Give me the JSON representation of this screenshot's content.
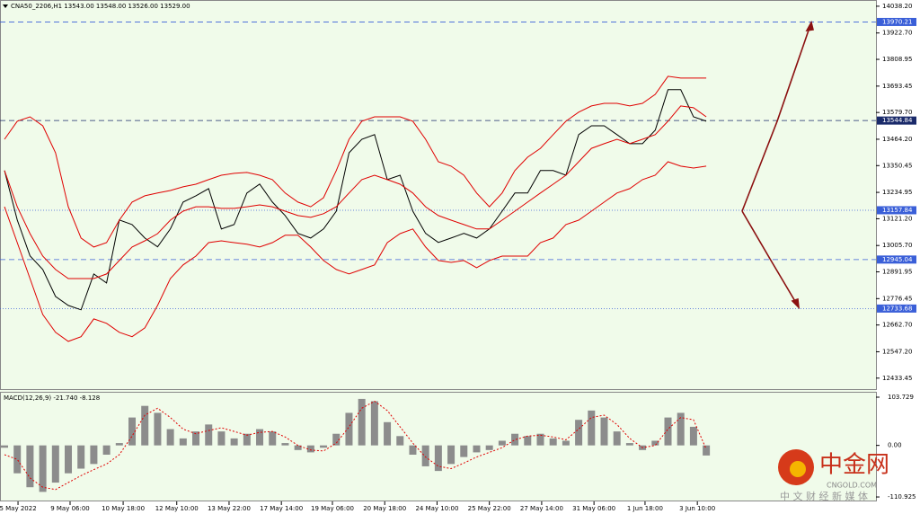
{
  "chart_data": [
    {
      "type": "line",
      "title": "CNA50_2206,H1  13543.00 13548.00 13526.00 13529.00",
      "x": [
        0,
        1,
        2,
        3,
        4,
        5,
        6,
        7,
        8,
        9,
        10,
        11,
        12,
        13,
        14,
        15,
        16,
        17,
        18,
        19,
        20,
        21,
        22,
        23,
        24,
        25,
        26,
        27,
        28,
        29,
        30,
        31,
        32,
        33,
        34,
        35,
        36,
        37,
        38,
        39,
        40,
        41,
        42,
        43,
        44,
        45,
        46,
        47,
        48,
        49,
        50,
        51,
        52,
        53,
        54,
        55
      ],
      "xlim": [
        0,
        68.3
      ],
      "xticks": [
        {
          "value": 1.06,
          "label": "5 May 2022"
        },
        {
          "value": 5.14,
          "label": "9 May 06:00"
        },
        {
          "value": 9.3,
          "label": "10 May 18:00"
        },
        {
          "value": 13.5,
          "label": "12 May 10:00"
        },
        {
          "value": 17.6,
          "label": "13 May 22:00"
        },
        {
          "value": 21.7,
          "label": "17 May 14:00"
        },
        {
          "value": 25.7,
          "label": "19 May 06:00"
        },
        {
          "value": 29.8,
          "label": "20 May 18:00"
        },
        {
          "value": 33.9,
          "label": "24 May 10:00"
        },
        {
          "value": 38,
          "label": "25 May 22:00"
        },
        {
          "value": 42.1,
          "label": "27 May 14:00"
        },
        {
          "value": 46.2,
          "label": "31 May 06:00"
        },
        {
          "value": 50.2,
          "label": "1 Jun 18:00"
        },
        {
          "value": 54.3,
          "label": "3 Jun 10:00"
        }
      ],
      "ylim": [
        12390,
        14065
      ],
      "yticks": [
        {
          "value": 14038.2,
          "label": "14038.20"
        },
        {
          "value": 13922.7,
          "label": "13922.70"
        },
        {
          "value": 13808.95,
          "label": "13808.95"
        },
        {
          "value": 13693.45,
          "label": "13693.45"
        },
        {
          "value": 13579.7,
          "label": "13579.70"
        },
        {
          "value": 13464.2,
          "label": "13464.20"
        },
        {
          "value": 13350.45,
          "label": "13350.45"
        },
        {
          "value": 13234.95,
          "label": "13234.95"
        },
        {
          "value": 13121.2,
          "label": "13121.20"
        },
        {
          "value": 13005.7,
          "label": "13005.70"
        },
        {
          "value": 12891.95,
          "label": "12891.95"
        },
        {
          "value": 12776.45,
          "label": "12776.45"
        },
        {
          "value": 12662.7,
          "label": "12662.70"
        },
        {
          "value": 12547.2,
          "label": "12547.20"
        },
        {
          "value": 12433.45,
          "label": "12433.45"
        }
      ],
      "levels": [
        {
          "value": 13970.21,
          "style": "dashed",
          "color": "#3a5fd8"
        },
        {
          "value": 13544.84,
          "style": "dashed",
          "color": "#1a2a6a"
        },
        {
          "value": 13157.84,
          "style": "dotted",
          "color": "#3a5fd8"
        },
        {
          "value": 12945.04,
          "style": "dashed",
          "color": "#3a5fd8"
        },
        {
          "value": 12733.68,
          "style": "dotted",
          "color": "#3a5fd8"
        }
      ],
      "series": [
        {
          "color": "#000000",
          "values": [
            13329,
            13116,
            12961,
            12902,
            12786,
            12747,
            12728,
            12883,
            12844,
            13116,
            13096,
            13038,
            13000,
            13077,
            13193,
            13220,
            13251,
            13077,
            13096,
            13232,
            13271,
            13193,
            13135,
            13058,
            13038,
            13077,
            13154,
            13406,
            13464,
            13484,
            13290,
            13309,
            13154,
            13058,
            13019,
            13038,
            13058,
            13038,
            13077,
            13154,
            13232,
            13232,
            13329,
            13329,
            13309,
            13484,
            13522,
            13522,
            13484,
            13445,
            13445,
            13503,
            13678,
            13678,
            13561,
            13542
          ]
        },
        {
          "color": "#e00000",
          "values": [
            13464,
            13542,
            13561,
            13522,
            13406,
            13173,
            13038,
            12999,
            13018,
            13115,
            13193,
            13220,
            13232,
            13243,
            13259,
            13270,
            13290,
            13309,
            13317,
            13321,
            13309,
            13290,
            13232,
            13193,
            13173,
            13212,
            13329,
            13464,
            13542,
            13561,
            13561,
            13561,
            13542,
            13464,
            13367,
            13348,
            13309,
            13232,
            13173,
            13232,
            13329,
            13387,
            13425,
            13484,
            13542,
            13581,
            13608,
            13619,
            13619,
            13608,
            13619,
            13658,
            13736,
            13728,
            13728,
            13728
          ]
        },
        {
          "color": "#e00000",
          "values": [
            13329,
            13173,
            13057,
            12960,
            12902,
            12863,
            12863,
            12863,
            12883,
            12941,
            12999,
            13026,
            13057,
            13115,
            13154,
            13173,
            13173,
            13166,
            13166,
            13173,
            13181,
            13173,
            13154,
            13135,
            13127,
            13143,
            13173,
            13232,
            13290,
            13309,
            13290,
            13270,
            13232,
            13173,
            13135,
            13115,
            13096,
            13077,
            13077,
            13115,
            13154,
            13193,
            13232,
            13270,
            13309,
            13367,
            13425,
            13445,
            13464,
            13445,
            13464,
            13484,
            13542,
            13608,
            13600,
            13561
          ]
        },
        {
          "color": "#e00000",
          "values": [
            13173,
            13018,
            12863,
            12708,
            12631,
            12592,
            12612,
            12689,
            12670,
            12631,
            12612,
            12650,
            12747,
            12863,
            12922,
            12960,
            13018,
            13026,
            13018,
            13011,
            12999,
            13018,
            13050,
            13050,
            12999,
            12941,
            12902,
            12883,
            12902,
            12922,
            13018,
            13057,
            13077,
            12999,
            12941,
            12933,
            12941,
            12910,
            12941,
            12960,
            12960,
            12960,
            13018,
            13038,
            13096,
            13115,
            13154,
            13193,
            13232,
            13251,
            13290,
            13309,
            13367,
            13348,
            13340,
            13348
          ]
        }
      ]
    },
    {
      "type": "macd",
      "title": "MACD(12,26,9) -21.740 -8.128",
      "ylim": [
        -120.5,
        115.3
      ],
      "yticks": [
        {
          "value": 103.729,
          "label": "103.729"
        },
        {
          "value": 0,
          "label": "0.00"
        },
        {
          "value": -110.925,
          "label": "-110.925"
        }
      ],
      "series": [
        {
          "color": "#8c8c8c",
          "values": [
            -5,
            -60,
            -90,
            -100,
            -80,
            -60,
            -50,
            -40,
            -20,
            5,
            60,
            85,
            70,
            35,
            15,
            30,
            45,
            30,
            15,
            25,
            35,
            30,
            5,
            -10,
            -15,
            -5,
            25,
            70,
            100,
            95,
            50,
            20,
            -20,
            -45,
            -55,
            -40,
            -25,
            -15,
            -10,
            10,
            25,
            20,
            25,
            15,
            10,
            55,
            75,
            60,
            30,
            5,
            -10,
            10,
            60,
            70,
            40,
            -21.74
          ]
        },
        {
          "color": "#e00000",
          "values": [
            -20,
            -30,
            -70,
            -90,
            -95,
            -80,
            -65,
            -52,
            -40,
            -20,
            20,
            65,
            80,
            60,
            35,
            25,
            32,
            38,
            30,
            22,
            28,
            30,
            18,
            0,
            -10,
            -12,
            5,
            40,
            80,
            95,
            75,
            40,
            5,
            -25,
            -45,
            -50,
            -38,
            -25,
            -15,
            -5,
            12,
            20,
            22,
            18,
            12,
            35,
            60,
            65,
            45,
            15,
            -5,
            0,
            35,
            60,
            55,
            -8.128
          ]
        }
      ]
    }
  ],
  "watermark": {
    "name": "中金网",
    "site": "CNGOLD.COM",
    "slogan": "中 文 财 经 新 媒 体"
  }
}
